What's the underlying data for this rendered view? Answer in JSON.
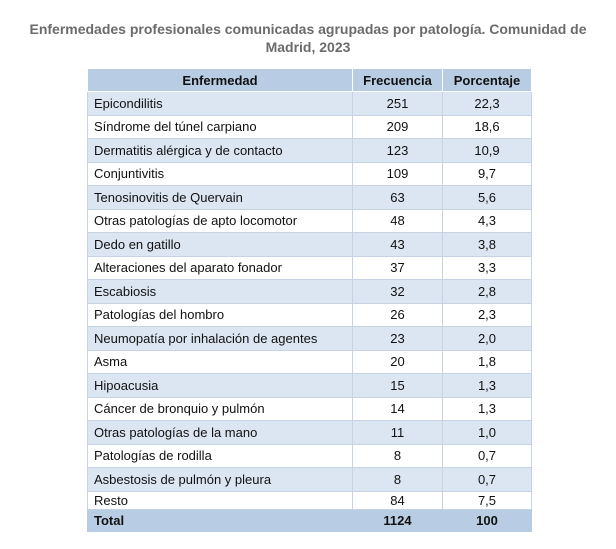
{
  "title": "Enfermedades profesionales comunicadas agrupadas por patología. Comunidad de Madrid, 2023",
  "headers": [
    "Enfermedad",
    "Frecuencia",
    "Porcentaje"
  ],
  "rows": [
    [
      "Epicondilitis",
      "251",
      "22,3"
    ],
    [
      "Síndrome del túnel carpiano",
      "209",
      "18,6"
    ],
    [
      "Dermatitis alérgica y de contacto",
      "123",
      "10,9"
    ],
    [
      "Conjuntivitis",
      "109",
      "9,7"
    ],
    [
      "Tenosinovitis de Quervain",
      "63",
      "5,6"
    ],
    [
      "Otras patologías de apto locomotor",
      "48",
      "4,3"
    ],
    [
      "Dedo en gatillo",
      "43",
      "3,8"
    ],
    [
      "Alteraciones del aparato fonador",
      "37",
      "3,3"
    ],
    [
      "Escabiosis",
      "32",
      "2,8"
    ],
    [
      "Patologías del hombro",
      "26",
      "2,3"
    ],
    [
      "Neumopatía por inhalación de agentes",
      "23",
      "2,0"
    ],
    [
      "Asma",
      "20",
      "1,8"
    ],
    [
      "Hipoacusia",
      "15",
      "1,3"
    ],
    [
      "Cáncer de bronquio y pulmón",
      "14",
      "1,3"
    ],
    [
      "Otras patologías de la mano",
      "11",
      "1,0"
    ],
    [
      "Patologías de rodilla",
      "8",
      "0,7"
    ],
    [
      "Asbestosis de pulmón y pleura",
      "8",
      "0,7"
    ],
    [
      "Resto",
      "84",
      "7,5"
    ]
  ],
  "total": [
    "Total",
    "1124",
    "100"
  ]
}
